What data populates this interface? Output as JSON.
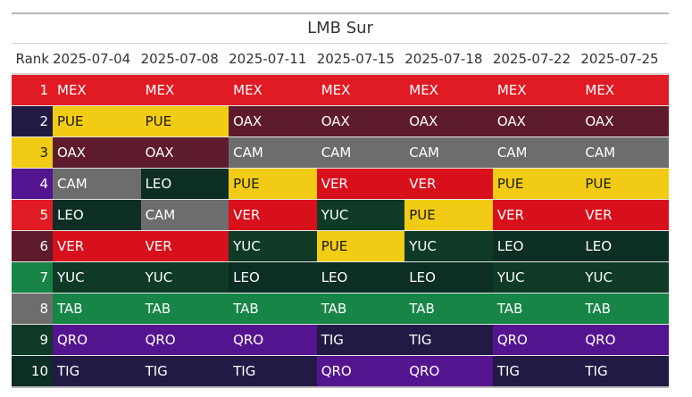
{
  "title": "LMB Sur",
  "rank_header": "Rank",
  "dates": [
    "2025-07-04",
    "2025-07-08",
    "2025-07-11",
    "2025-07-15",
    "2025-07-18",
    "2025-07-22",
    "2025-07-25"
  ],
  "team_colors": {
    "MEX": {
      "bg": "#e11b23",
      "fg": "#ffffff"
    },
    "PUE": {
      "bg": "#f2cc14",
      "fg": "#1a1a1a"
    },
    "OAX": {
      "bg": "#5e1b2c",
      "fg": "#ffffff"
    },
    "CAM": {
      "bg": "#6d6d6d",
      "fg": "#ffffff"
    },
    "LEO": {
      "bg": "#0c2e24",
      "fg": "#ffffff"
    },
    "VER": {
      "bg": "#d8101c",
      "fg": "#ffffff"
    },
    "YUC": {
      "bg": "#0e3a26",
      "fg": "#ffffff"
    },
    "TAB": {
      "bg": "#178546",
      "fg": "#ffffff"
    },
    "QRO": {
      "bg": "#541490",
      "fg": "#ffffff"
    },
    "TIG": {
      "bg": "#221a45",
      "fg": "#ffffff"
    }
  },
  "rank_colors": [
    {
      "bg": "#e11b23",
      "fg": "#ffffff"
    },
    {
      "bg": "#221a45",
      "fg": "#ffffff"
    },
    {
      "bg": "#f2cc14",
      "fg": "#1a1a1a"
    },
    {
      "bg": "#541490",
      "fg": "#ffffff"
    },
    {
      "bg": "#e11b23",
      "fg": "#ffffff"
    },
    {
      "bg": "#5e1b2c",
      "fg": "#ffffff"
    },
    {
      "bg": "#178546",
      "fg": "#ffffff"
    },
    {
      "bg": "#6d6d6d",
      "fg": "#ffffff"
    },
    {
      "bg": "#0e3a26",
      "fg": "#ffffff"
    },
    {
      "bg": "#0c2e24",
      "fg": "#ffffff"
    }
  ],
  "rows": [
    {
      "rank": "1",
      "teams": [
        "MEX",
        "MEX",
        "MEX",
        "MEX",
        "MEX",
        "MEX",
        "MEX"
      ]
    },
    {
      "rank": "2",
      "teams": [
        "PUE",
        "PUE",
        "OAX",
        "OAX",
        "OAX",
        "OAX",
        "OAX"
      ]
    },
    {
      "rank": "3",
      "teams": [
        "OAX",
        "OAX",
        "CAM",
        "CAM",
        "CAM",
        "CAM",
        "CAM"
      ]
    },
    {
      "rank": "4",
      "teams": [
        "CAM",
        "LEO",
        "PUE",
        "VER",
        "VER",
        "PUE",
        "PUE"
      ]
    },
    {
      "rank": "5",
      "teams": [
        "LEO",
        "CAM",
        "VER",
        "YUC",
        "PUE",
        "VER",
        "VER"
      ]
    },
    {
      "rank": "6",
      "teams": [
        "VER",
        "VER",
        "YUC",
        "PUE",
        "YUC",
        "LEO",
        "LEO"
      ]
    },
    {
      "rank": "7",
      "teams": [
        "YUC",
        "YUC",
        "LEO",
        "LEO",
        "LEO",
        "YUC",
        "YUC"
      ]
    },
    {
      "rank": "8",
      "teams": [
        "TAB",
        "TAB",
        "TAB",
        "TAB",
        "TAB",
        "TAB",
        "TAB"
      ]
    },
    {
      "rank": "9",
      "teams": [
        "QRO",
        "QRO",
        "QRO",
        "TIG",
        "TIG",
        "QRO",
        "QRO"
      ]
    },
    {
      "rank": "10",
      "teams": [
        "TIG",
        "TIG",
        "TIG",
        "QRO",
        "QRO",
        "TIG",
        "TIG"
      ]
    }
  ]
}
